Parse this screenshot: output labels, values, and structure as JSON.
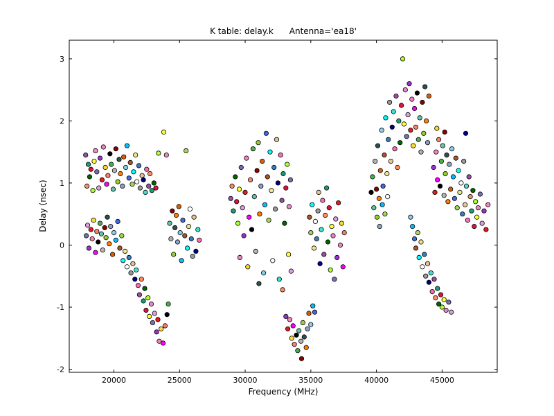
{
  "chart_data": {
    "type": "scatter",
    "title": "K table: delay.k      Antenna='ea18'",
    "xlabel": "Frequency (MHz)",
    "ylabel": "Delay (nsec)",
    "xlim": [
      16600,
      49200
    ],
    "ylim": [
      -2.05,
      3.3
    ],
    "xticks": [
      20000,
      25000,
      30000,
      35000,
      40000,
      45000
    ],
    "yticks": [
      -2,
      -1,
      0,
      1,
      2,
      3
    ],
    "grid": false,
    "legend": null,
    "background": "#ffffff",
    "frame_color": "#000000",
    "marker_edge_color": "#000000",
    "marker_diameter_px": 6.4,
    "palette": [
      "#e41a1c",
      "#377eb8",
      "#4daf4a",
      "#984ea3",
      "#ff7f00",
      "#ffff33",
      "#a65628",
      "#f781bf",
      "#999999",
      "#66c2a5",
      "#fc8d62",
      "#8da0cb",
      "#e78ac3",
      "#a6d854",
      "#ffd92f",
      "#e5c494",
      "#b3b3b3",
      "#1b9e77",
      "#d95f02",
      "#7570b3",
      "#00ffff",
      "#ff00ff",
      "#000080",
      "#8b0000",
      "#006400",
      "#87ceeb",
      "#dda0dd",
      "#f0e68c",
      "#fa8072",
      "#40e0d0",
      "#9acd32",
      "#dc143c",
      "#00bfff",
      "#9932cc",
      "#ffffff",
      "#000000",
      "#ff69b4",
      "#2f4f4f",
      "#adff2f",
      "#4169e1"
    ],
    "points": [
      [
        17850,
        1.45
      ],
      [
        17950,
        0.95
      ],
      [
        18050,
        1.3
      ],
      [
        18150,
        1.1
      ],
      [
        18250,
        1.22
      ],
      [
        18400,
        0.88
      ],
      [
        18500,
        1.35
      ],
      [
        18600,
        1.52
      ],
      [
        18700,
        1.18
      ],
      [
        18850,
        0.92
      ],
      [
        18950,
        1.4
      ],
      [
        19100,
        1.05
      ],
      [
        19200,
        1.58
      ],
      [
        19350,
        1.25
      ],
      [
        19450,
        0.98
      ],
      [
        19550,
        1.12
      ],
      [
        19700,
        1.47
      ],
      [
        19800,
        1.3
      ],
      [
        19950,
        0.9
      ],
      [
        20050,
        1.2
      ],
      [
        20150,
        1.55
      ],
      [
        20300,
        1.02
      ],
      [
        20400,
        1.38
      ],
      [
        20500,
        1.15
      ],
      [
        20650,
        0.95
      ],
      [
        20750,
        1.42
      ],
      [
        20900,
        1.25
      ],
      [
        21000,
        1.6
      ],
      [
        21150,
        1.08
      ],
      [
        21250,
        1.33
      ],
      [
        21400,
        0.98
      ],
      [
        21500,
        1.18
      ],
      [
        21650,
        1.45
      ],
      [
        21750,
        1.02
      ],
      [
        21900,
        1.28
      ],
      [
        22000,
        0.92
      ],
      [
        22150,
        1.12
      ],
      [
        22250,
        1.05
      ],
      [
        22400,
        0.85
      ],
      [
        22500,
        1.22
      ],
      [
        22650,
        0.95
      ],
      [
        22750,
        1.15
      ],
      [
        22900,
        0.88
      ],
      [
        23050,
        1.0
      ],
      [
        23200,
        0.92
      ],
      [
        23400,
        1.48
      ],
      [
        23800,
        1.82
      ],
      [
        24000,
        1.45
      ],
      [
        17900,
        0.15
      ],
      [
        18000,
        0.32
      ],
      [
        18100,
        -0.05
      ],
      [
        18250,
        0.25
      ],
      [
        18350,
        0.1
      ],
      [
        18450,
        0.4
      ],
      [
        18600,
        -0.12
      ],
      [
        18700,
        0.22
      ],
      [
        18800,
        0.05
      ],
      [
        18950,
        0.35
      ],
      [
        19050,
        0.18
      ],
      [
        19150,
        -0.08
      ],
      [
        19300,
        0.28
      ],
      [
        19400,
        0.12
      ],
      [
        19500,
        0.45
      ],
      [
        19650,
        0.02
      ],
      [
        19750,
        0.3
      ],
      [
        19900,
        -0.15
      ],
      [
        20000,
        0.2
      ],
      [
        20150,
        0.08
      ],
      [
        20300,
        0.38
      ],
      [
        20450,
        -0.05
      ],
      [
        20600,
        0.15
      ],
      [
        20700,
        -0.25
      ],
      [
        20850,
        -0.1
      ],
      [
        21000,
        -0.35
      ],
      [
        21150,
        -0.2
      ],
      [
        21300,
        -0.45
      ],
      [
        21450,
        -0.3
      ],
      [
        21600,
        -0.55
      ],
      [
        21700,
        -0.4
      ],
      [
        21850,
        -0.65
      ],
      [
        21950,
        -0.8
      ],
      [
        22100,
        -0.55
      ],
      [
        22250,
        -0.9
      ],
      [
        22350,
        -0.7
      ],
      [
        22450,
        -1.05
      ],
      [
        22600,
        -0.85
      ],
      [
        22700,
        -1.15
      ],
      [
        22850,
        -0.95
      ],
      [
        22950,
        -1.25
      ],
      [
        23100,
        -1.1
      ],
      [
        23250,
        -1.4
      ],
      [
        23350,
        -1.2
      ],
      [
        23450,
        -1.55
      ],
      [
        23600,
        -1.35
      ],
      [
        23750,
        -1.58
      ],
      [
        23900,
        -1.3
      ],
      [
        24050,
        -1.12
      ],
      [
        24150,
        -0.95
      ],
      [
        24250,
        0.35
      ],
      [
        24350,
        0.1
      ],
      [
        24450,
        0.55
      ],
      [
        24550,
        -0.15
      ],
      [
        24650,
        0.28
      ],
      [
        24750,
        0.48
      ],
      [
        24850,
        0.05
      ],
      [
        24950,
        0.62
      ],
      [
        25050,
        0.2
      ],
      [
        25150,
        -0.25
      ],
      [
        25250,
        0.4
      ],
      [
        25400,
        0.15
      ],
      [
        25500,
        1.52
      ],
      [
        25600,
        -0.05
      ],
      [
        25700,
        0.3
      ],
      [
        25800,
        0.58
      ],
      [
        25900,
        0.1
      ],
      [
        26000,
        -0.18
      ],
      [
        26100,
        0.45
      ],
      [
        26250,
        -0.1
      ],
      [
        26400,
        0.25
      ],
      [
        26500,
        0.08
      ],
      [
        28900,
        0.75
      ],
      [
        29000,
        0.95
      ],
      [
        29100,
        0.55
      ],
      [
        29250,
        1.1
      ],
      [
        29350,
        0.7
      ],
      [
        29450,
        0.35
      ],
      [
        29550,
        0.9
      ],
      [
        29600,
        -0.2
      ],
      [
        29700,
        1.25
      ],
      [
        29800,
        0.6
      ],
      [
        29900,
        0.15
      ],
      [
        30000,
        0.85
      ],
      [
        30100,
        1.4
      ],
      [
        30200,
        -0.35
      ],
      [
        30300,
        0.45
      ],
      [
        30400,
        1.05
      ],
      [
        30500,
        0.25
      ],
      [
        30600,
        1.55
      ],
      [
        30700,
        0.78
      ],
      [
        30800,
        -0.1
      ],
      [
        30900,
        1.2
      ],
      [
        31000,
        1.65
      ],
      [
        31050,
        -0.62
      ],
      [
        31100,
        0.5
      ],
      [
        31200,
        0.95
      ],
      [
        31300,
        1.35
      ],
      [
        31400,
        -0.45
      ],
      [
        31500,
        0.65
      ],
      [
        31600,
        1.8
      ],
      [
        31700,
        1.1
      ],
      [
        31800,
        0.4
      ],
      [
        31900,
        1.5
      ],
      [
        32000,
        0.88
      ],
      [
        32100,
        -0.25
      ],
      [
        32200,
        1.25
      ],
      [
        32300,
        0.58
      ],
      [
        32400,
        1.7
      ],
      [
        32500,
        1.0
      ],
      [
        32600,
        -0.55
      ],
      [
        32700,
        1.45
      ],
      [
        32800,
        0.72
      ],
      [
        32850,
        -0.72
      ],
      [
        32900,
        1.15
      ],
      [
        33000,
        0.35
      ],
      [
        33100,
        0.92
      ],
      [
        33200,
        1.3
      ],
      [
        33300,
        -0.15
      ],
      [
        33350,
        0.62
      ],
      [
        33450,
        1.05
      ],
      [
        33500,
        -0.42
      ],
      [
        33100,
        -1.15
      ],
      [
        33250,
        -1.35
      ],
      [
        33400,
        -1.2
      ],
      [
        33550,
        -1.5
      ],
      [
        33650,
        -1.3
      ],
      [
        33750,
        -1.6
      ],
      [
        33900,
        -1.45
      ],
      [
        34000,
        -1.7
      ],
      [
        34100,
        -1.38
      ],
      [
        34250,
        -1.55
      ],
      [
        34300,
        -1.83
      ],
      [
        34400,
        -1.25
      ],
      [
        34500,
        -1.48
      ],
      [
        34650,
        -1.65
      ],
      [
        34750,
        -1.35
      ],
      [
        34850,
        -1.1
      ],
      [
        35000,
        -1.28
      ],
      [
        35150,
        -0.98
      ],
      [
        35300,
        -1.08
      ],
      [
        34900,
        0.45
      ],
      [
        35000,
        0.2
      ],
      [
        35100,
        0.65
      ],
      [
        35250,
        -0.05
      ],
      [
        35350,
        0.38
      ],
      [
        35450,
        0.1
      ],
      [
        35550,
        0.55
      ],
      [
        35600,
        0.85
      ],
      [
        35700,
        -0.3
      ],
      [
        35800,
        0.25
      ],
      [
        35900,
        0.72
      ],
      [
        36000,
        -0.15
      ],
      [
        36100,
        0.48
      ],
      [
        36200,
        0.92
      ],
      [
        36300,
        0.05
      ],
      [
        36400,
        0.6
      ],
      [
        36500,
        -0.4
      ],
      [
        36600,
        0.3
      ],
      [
        36700,
        0.15
      ],
      [
        36800,
        -0.55
      ],
      [
        36900,
        0.42
      ],
      [
        37000,
        -0.2
      ],
      [
        37100,
        0.68
      ],
      [
        37250,
        0.0
      ],
      [
        37350,
        0.35
      ],
      [
        37450,
        -0.35
      ],
      [
        37550,
        0.2
      ],
      [
        39600,
        0.85
      ],
      [
        39700,
        1.1
      ],
      [
        39800,
        0.6
      ],
      [
        39900,
        1.35
      ],
      [
        40000,
        0.9
      ],
      [
        40050,
        0.45
      ],
      [
        40100,
        1.6
      ],
      [
        40200,
        0.75
      ],
      [
        40250,
        0.3
      ],
      [
        40300,
        1.2
      ],
      [
        40400,
        1.85
      ],
      [
        40450,
        0.65
      ],
      [
        40500,
        0.95
      ],
      [
        40600,
        1.45
      ],
      [
        40650,
        0.5
      ],
      [
        40700,
        2.05
      ],
      [
        40800,
        1.15
      ],
      [
        40850,
        0.78
      ],
      [
        40900,
        1.7
      ],
      [
        41000,
        2.3
      ],
      [
        41100,
        1.35
      ],
      [
        41200,
        1.9
      ],
      [
        41300,
        2.15
      ],
      [
        41400,
        1.55
      ],
      [
        41500,
        2.4
      ],
      [
        41600,
        1.25
      ],
      [
        41700,
        2.0
      ],
      [
        41800,
        1.65
      ],
      [
        41900,
        2.25
      ],
      [
        42000,
        3.0
      ],
      [
        42100,
        1.95
      ],
      [
        42200,
        2.5
      ],
      [
        42300,
        1.75
      ],
      [
        42400,
        2.1
      ],
      [
        42500,
        2.6
      ],
      [
        42600,
        1.85
      ],
      [
        42700,
        2.35
      ],
      [
        42800,
        1.6
      ],
      [
        42900,
        2.2
      ],
      [
        43000,
        1.9
      ],
      [
        43100,
        2.45
      ],
      [
        43200,
        1.7
      ],
      [
        43300,
        2.05
      ],
      [
        43400,
        1.5
      ],
      [
        43500,
        2.3
      ],
      [
        43600,
        1.8
      ],
      [
        43700,
        2.55
      ],
      [
        43800,
        2.0
      ],
      [
        43900,
        1.65
      ],
      [
        44000,
        2.4
      ],
      [
        42600,
        0.45
      ],
      [
        42750,
        0.3
      ],
      [
        42900,
        0.1
      ],
      [
        43000,
        -0.05
      ],
      [
        43150,
        0.2
      ],
      [
        43250,
        -0.2
      ],
      [
        43400,
        0.05
      ],
      [
        43500,
        -0.35
      ],
      [
        43650,
        -0.15
      ],
      [
        43750,
        -0.5
      ],
      [
        43900,
        -0.3
      ],
      [
        44000,
        -0.6
      ],
      [
        44150,
        -0.45
      ],
      [
        44250,
        -0.75
      ],
      [
        44400,
        -0.55
      ],
      [
        44500,
        -0.85
      ],
      [
        44650,
        -0.7
      ],
      [
        44750,
        -0.95
      ],
      [
        44900,
        -0.8
      ],
      [
        45000,
        -1.0
      ],
      [
        45150,
        -0.88
      ],
      [
        45300,
        -1.05
      ],
      [
        45500,
        -0.92
      ],
      [
        45700,
        -1.08
      ],
      [
        44350,
        1.25
      ],
      [
        44450,
        0.85
      ],
      [
        44550,
        1.5
      ],
      [
        44600,
        1.88
      ],
      [
        44650,
        1.05
      ],
      [
        44750,
        1.7
      ],
      [
        44850,
        0.95
      ],
      [
        44950,
        1.35
      ],
      [
        45050,
        1.6
      ],
      [
        45150,
        0.8
      ],
      [
        45200,
        1.82
      ],
      [
        45250,
        1.15
      ],
      [
        45350,
        1.45
      ],
      [
        45450,
        0.7
      ],
      [
        45550,
        1.3
      ],
      [
        45650,
        0.9
      ],
      [
        45750,
        1.55
      ],
      [
        45850,
        1.1
      ],
      [
        45950,
        0.75
      ],
      [
        46050,
        1.4
      ],
      [
        46150,
        0.6
      ],
      [
        46250,
        1.2
      ],
      [
        46350,
        0.85
      ],
      [
        46450,
        1.0
      ],
      [
        46550,
        0.5
      ],
      [
        46650,
        1.35
      ],
      [
        46750,
        0.65
      ],
      [
        46800,
        1.8
      ],
      [
        46850,
        0.95
      ],
      [
        46950,
        0.4
      ],
      [
        47050,
        1.1
      ],
      [
        47150,
        0.78
      ],
      [
        47250,
        0.55
      ],
      [
        47350,
        0.88
      ],
      [
        47450,
        0.3
      ],
      [
        47550,
        0.7
      ],
      [
        47650,
        0.45
      ],
      [
        47750,
        0.6
      ],
      [
        47900,
        0.82
      ],
      [
        48050,
        0.35
      ],
      [
        48200,
        0.55
      ],
      [
        48350,
        0.25
      ],
      [
        48500,
        0.65
      ]
    ]
  }
}
